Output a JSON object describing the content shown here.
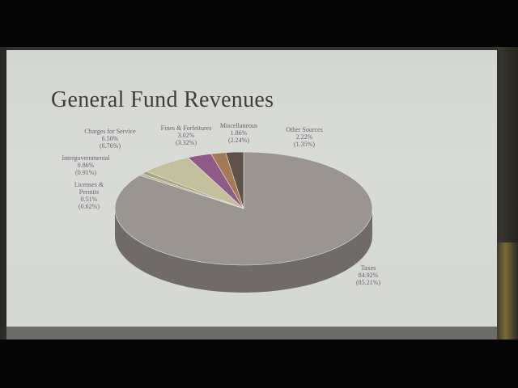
{
  "title": "General Fund Revenues",
  "chart_data": {
    "type": "pie",
    "title": "General Fund Revenues",
    "three_d": true,
    "slices": [
      {
        "label": "Taxes",
        "value": 84.92,
        "prior": "(85.21%)",
        "value_text": "84.92%",
        "color": "#9b9592"
      },
      {
        "label": "Licenses & Permits",
        "value": 0.51,
        "prior": "(0.62%)",
        "value_text": "0.51%",
        "color": "#b9b29a"
      },
      {
        "label": "Intergovernmental",
        "value": 0.86,
        "prior": "(0.91%)",
        "value_text": "0.86%",
        "color": "#a8a47f"
      },
      {
        "label": "Charges for Service",
        "value": 6.5,
        "prior": "(6.76%)",
        "value_text": "6.50%",
        "color": "#c3c19d"
      },
      {
        "label": "Fines & Forfeitures",
        "value": 3.02,
        "prior": "(3.32%)",
        "value_text": "3.02%",
        "color": "#8e5a86"
      },
      {
        "label": "Miscellaneous",
        "value": 1.86,
        "prior": "(2.24%)",
        "value_text": "1.86%",
        "color": "#a27a58"
      },
      {
        "label": "Other Sources",
        "value": 2.22,
        "prior": "(1.35%)",
        "value_text": "2.22%",
        "color": "#5e5148"
      }
    ]
  }
}
